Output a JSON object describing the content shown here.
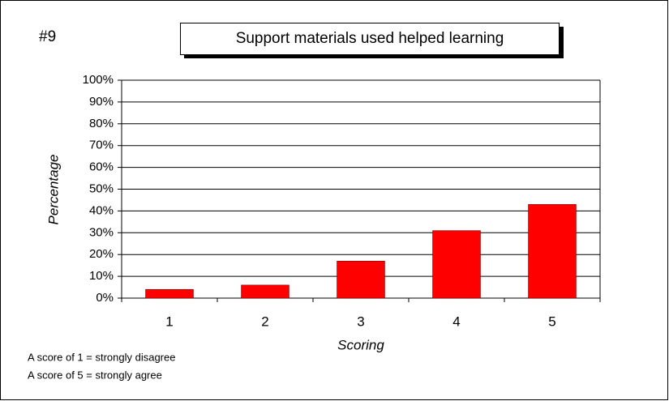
{
  "chart_data": {
    "type": "bar",
    "title": "Support materials used helped learning",
    "label": "#9",
    "xlabel": "Scoring",
    "ylabel": "Percentage",
    "categories": [
      "1",
      "2",
      "3",
      "4",
      "5"
    ],
    "values": [
      4,
      6,
      17,
      31,
      43
    ],
    "color": "#ff0000",
    "ylim": [
      0,
      100
    ],
    "yticks": [
      {
        "value": 0,
        "label": "0%"
      },
      {
        "value": 10,
        "label": "10%"
      },
      {
        "value": 20,
        "label": "20%"
      },
      {
        "value": 30,
        "label": "30%"
      },
      {
        "value": 40,
        "label": "40%"
      },
      {
        "value": 50,
        "label": "50%"
      },
      {
        "value": 60,
        "label": "60%"
      },
      {
        "value": 70,
        "label": "70%"
      },
      {
        "value": 80,
        "label": "80%"
      },
      {
        "value": 90,
        "label": "90%"
      },
      {
        "value": 100,
        "label": "100%"
      }
    ],
    "grid": true,
    "notes": [
      "A score of 1 = strongly disagree",
      "A score of 5 = strongly agree"
    ]
  }
}
